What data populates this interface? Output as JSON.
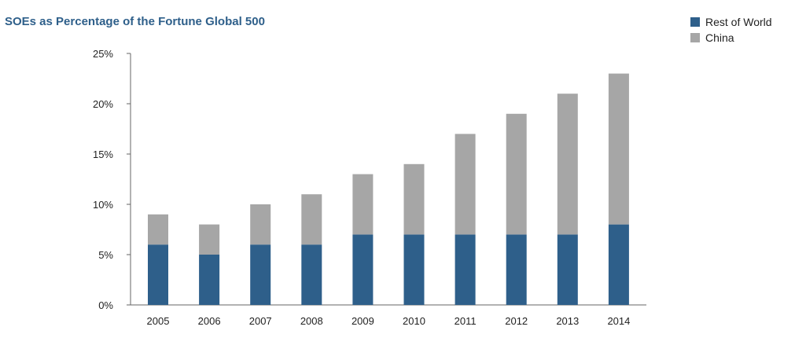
{
  "chart_data": {
    "type": "bar",
    "stacked": true,
    "title": "SOEs as Percentage of the Fortune Global 500",
    "xlabel": "",
    "ylabel": "",
    "categories": [
      "2005",
      "2006",
      "2007",
      "2008",
      "2009",
      "2010",
      "2011",
      "2012",
      "2013",
      "2014"
    ],
    "series": [
      {
        "name": "Rest of World",
        "color": "#2e5f8a",
        "values": [
          6,
          5,
          6,
          6,
          7,
          7,
          7,
          7,
          7,
          8
        ]
      },
      {
        "name": "China",
        "color": "#a6a6a6",
        "values": [
          3,
          3,
          4,
          5,
          6,
          7,
          10,
          12,
          14,
          15
        ]
      }
    ],
    "ylim": [
      0,
      25
    ],
    "yticks": [
      0,
      5,
      10,
      15,
      20,
      25
    ],
    "ytick_labels": [
      "0%",
      "5%",
      "10%",
      "15%",
      "20%",
      "25%"
    ],
    "grid": false,
    "legend_position": "top-right",
    "title_color": "#2e5f8a"
  }
}
